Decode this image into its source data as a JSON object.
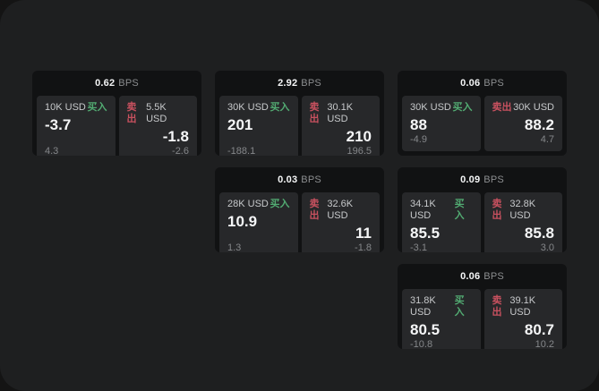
{
  "labels": {
    "bps_unit": "BPS",
    "buy": "买入",
    "sell": "卖出"
  },
  "colors": {
    "backdrop": "#141414",
    "page_bg": "#1e1f20",
    "card_bg": "#111213",
    "panel_bg": "#27282a",
    "text_primary": "#f5f6f7",
    "text_label": "#c7c9cb",
    "text_muted": "#85878a",
    "text_muted2": "#8c8e90",
    "buy_green": "#52ab72",
    "sell_red": "#c8515f"
  },
  "cards": [
    {
      "bps": "0.62",
      "row": 1,
      "col": 1,
      "buy": {
        "amount": "10K USD",
        "price": "-3.7",
        "delta": "4.3"
      },
      "sell": {
        "amount": "5.5K USD",
        "price": "-1.8",
        "delta": "-2.6"
      }
    },
    {
      "bps": "2.92",
      "row": 1,
      "col": 2,
      "buy": {
        "amount": "30K USD",
        "price": "201",
        "delta": "-188.1"
      },
      "sell": {
        "amount": "30.1K USD",
        "price": "210",
        "delta": "196.5"
      }
    },
    {
      "bps": "0.06",
      "row": 1,
      "col": 3,
      "buy": {
        "amount": "30K USD",
        "price": "88",
        "delta": "-4.9"
      },
      "sell": {
        "amount": "30K USD",
        "price": "88.2",
        "delta": "4.7"
      }
    },
    {
      "bps": "0.03",
      "row": 2,
      "col": 2,
      "buy": {
        "amount": "28K USD",
        "price": "10.9",
        "delta": "1.3"
      },
      "sell": {
        "amount": "32.6K USD",
        "price": "11",
        "delta": "-1.8"
      }
    },
    {
      "bps": "0.09",
      "row": 2,
      "col": 3,
      "buy": {
        "amount": "34.1K USD",
        "price": "85.5",
        "delta": "-3.1"
      },
      "sell": {
        "amount": "32.8K USD",
        "price": "85.8",
        "delta": "3.0"
      }
    },
    {
      "bps": "0.06",
      "row": 3,
      "col": 3,
      "buy": {
        "amount": "31.8K USD",
        "price": "80.5",
        "delta": "-10.8"
      },
      "sell": {
        "amount": "39.1K USD",
        "price": "80.7",
        "delta": "10.2"
      }
    }
  ]
}
